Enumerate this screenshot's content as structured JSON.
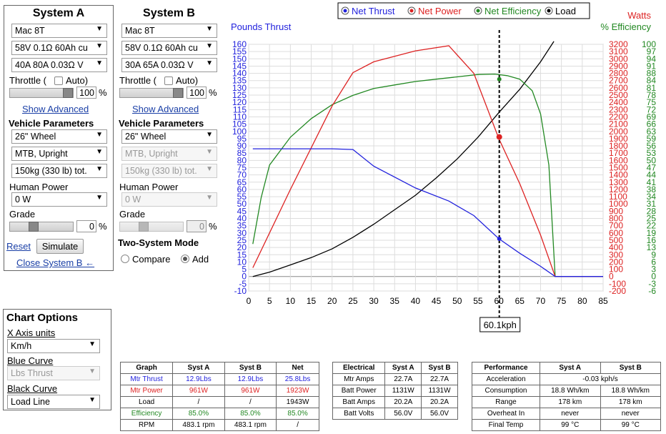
{
  "system_a": {
    "title": "System A",
    "motor": "Mac 8T",
    "battery": "58V 0.1Ω 60Ah cu",
    "controller": "40A 80A 0.03Ω V",
    "throttle_label": "Throttle (",
    "auto_label": "Auto)",
    "throttle_value": "100",
    "throttle_fraction": 1.0,
    "pct": "%",
    "show_advanced": "Show Advanced",
    "vehicle_params": "Vehicle Parameters",
    "wheel": "26\"  Wheel",
    "riding": "MTB, Upright",
    "weight": "150kg (330 lb) tot.",
    "human_power_label": "Human Power",
    "human_power": "0 W",
    "grade_label": "Grade",
    "grade_value": "0",
    "grade_fraction": 0.35,
    "reset": "Reset",
    "simulate": "Simulate",
    "close_b": "Close System B ←"
  },
  "system_b": {
    "title": "System B",
    "motor": "Mac 8T",
    "battery": "58V 0.1Ω 60Ah cu",
    "controller": "30A 65A 0.03Ω V",
    "throttle_label": "Throttle (",
    "auto_label": "Auto)",
    "throttle_value": "100",
    "throttle_fraction": 1.0,
    "pct": "%",
    "show_advanced": "Show Advanced",
    "vehicle_params": "Vehicle Parameters",
    "wheel": "26\"  Wheel",
    "riding": "MTB, Upright",
    "weight": "150kg (330 lb) tot.",
    "human_power_label": "Human Power",
    "human_power": "0 W",
    "grade_label": "Grade",
    "grade_value": "0",
    "grade_fraction": 0.35,
    "two_system_mode": "Two-System Mode",
    "compare": "Compare",
    "add": "Add"
  },
  "chart_options": {
    "title": "Chart Options",
    "x_axis_label": "X Axis units",
    "x_axis_value": "Km/h",
    "blue_label": "Blue Curve",
    "blue_value": "Lbs Thrust",
    "black_label": "Black Curve",
    "black_value": "Load Line"
  },
  "chart_data": {
    "type": "line",
    "legend": [
      "Net Thrust",
      "Net Power",
      "Net Efficiency",
      "Load"
    ],
    "colors": {
      "thrust": "#2222dd",
      "power": "#dd2222",
      "eff": "#228822",
      "load": "#000000"
    },
    "left_label": "Pounds Thrust",
    "right_label_1": "Watts",
    "right_label_2": "% Efficiency",
    "x_ticks": [
      0,
      5,
      10,
      15,
      20,
      25,
      30,
      35,
      40,
      45,
      50,
      55,
      60,
      65,
      70,
      75,
      80,
      85
    ],
    "thrust_ticks": [
      160,
      155,
      150,
      145,
      140,
      135,
      130,
      125,
      120,
      115,
      110,
      105,
      100,
      95,
      90,
      85,
      80,
      75,
      70,
      65,
      60,
      55,
      50,
      45,
      40,
      35,
      30,
      25,
      20,
      15,
      10,
      5,
      0,
      -5,
      -10
    ],
    "watts_ticks": [
      3200,
      3100,
      3000,
      2900,
      2800,
      2700,
      2600,
      2500,
      2400,
      2300,
      2200,
      2100,
      2000,
      1900,
      1800,
      1700,
      1600,
      1500,
      1400,
      1300,
      1200,
      1100,
      1000,
      900,
      800,
      700,
      600,
      500,
      400,
      300,
      200,
      100,
      0,
      -100,
      -200
    ],
    "eff_ticks": [
      100,
      97,
      94,
      91,
      88,
      84,
      81,
      78,
      75,
      72,
      69,
      66,
      63,
      59,
      56,
      53,
      50,
      47,
      44,
      41,
      38,
      34,
      31,
      28,
      25,
      22,
      19,
      16,
      13,
      9,
      6,
      3,
      0,
      -3,
      -6
    ],
    "xlim": [
      0,
      85
    ],
    "ylim_thrust": [
      -10,
      160
    ],
    "ylim_watts": [
      -200,
      3200
    ],
    "ylim_eff": [
      -6.25,
      100
    ],
    "thrust": {
      "x": [
        1,
        10,
        20,
        25,
        30,
        40,
        48,
        54,
        60,
        65,
        70,
        73.5,
        75,
        80,
        85
      ],
      "y": [
        88,
        88,
        88,
        87.5,
        76,
        61,
        52,
        42,
        26,
        16,
        7,
        0,
        0,
        0,
        0
      ]
    },
    "power": {
      "x": [
        1,
        10,
        20,
        25,
        30,
        40,
        48,
        54,
        60,
        65,
        70,
        73.5,
        75,
        80,
        85
      ],
      "y": [
        120,
        1200,
        2350,
        2810,
        2960,
        3110,
        3180,
        2800,
        1900,
        1280,
        570,
        0,
        0,
        0,
        0
      ]
    },
    "efficiency": {
      "x": [
        1,
        3,
        5,
        10,
        15,
        20,
        25,
        30,
        35,
        40,
        45,
        50,
        55,
        59,
        62,
        65,
        68,
        70,
        72,
        73.5,
        75,
        80,
        85
      ],
      "y": [
        14,
        34,
        48,
        60,
        68,
        74,
        78,
        81,
        82.5,
        84,
        85,
        86,
        87,
        87.2,
        86.5,
        85,
        80,
        70,
        48,
        0,
        0,
        0,
        0
      ]
    },
    "load": {
      "x": [
        1,
        5,
        10,
        15,
        20,
        25,
        30,
        35,
        40,
        45,
        50,
        55,
        60,
        65,
        70,
        73.2
      ],
      "y": [
        0,
        3,
        8,
        13,
        19,
        27,
        36,
        46,
        56,
        68,
        81,
        96,
        113,
        129,
        148,
        162
      ]
    },
    "cursor_x": 60.1,
    "cursor_label": "60.1kph",
    "markers": {
      "thrust": 26,
      "power": 1923,
      "eff": 85
    }
  },
  "graph_table": {
    "headers": [
      "Graph",
      "Syst A",
      "Syst B",
      "Net"
    ],
    "rows": [
      [
        "Mtr Thrust",
        "12.9Lbs",
        "12.9Lbs",
        "25.8Lbs"
      ],
      [
        "Mtr Power",
        "961W",
        "961W",
        "1923W"
      ],
      [
        "Load",
        "/",
        "/",
        "1943W"
      ],
      [
        "Efficiency",
        "85.0%",
        "85.0%",
        "85.0%"
      ],
      [
        "RPM",
        "483.1 rpm",
        "483.1 rpm",
        "/"
      ]
    ]
  },
  "electrical_table": {
    "headers": [
      "Electrical",
      "Syst A",
      "Syst B"
    ],
    "rows": [
      [
        "Mtr Amps",
        "22.7A",
        "22.7A"
      ],
      [
        "Batt Power",
        "1131W",
        "1131W"
      ],
      [
        "Batt Amps",
        "20.2A",
        "20.2A"
      ],
      [
        "Batt Volts",
        "56.0V",
        "56.0V"
      ]
    ]
  },
  "performance_table": {
    "headers": [
      "Performance",
      "Syst A",
      "Syst B"
    ],
    "acceleration_label": "Acceleration",
    "acceleration": "-0.03 kph/s",
    "rows": [
      [
        "Consumption",
        "18.8 Wh/km",
        "18.8 Wh/km"
      ],
      [
        "Range",
        "178 km",
        "178 km"
      ],
      [
        "Overheat In",
        "never",
        "never"
      ],
      [
        "Final Temp",
        "99 °C",
        "99 °C"
      ]
    ]
  }
}
